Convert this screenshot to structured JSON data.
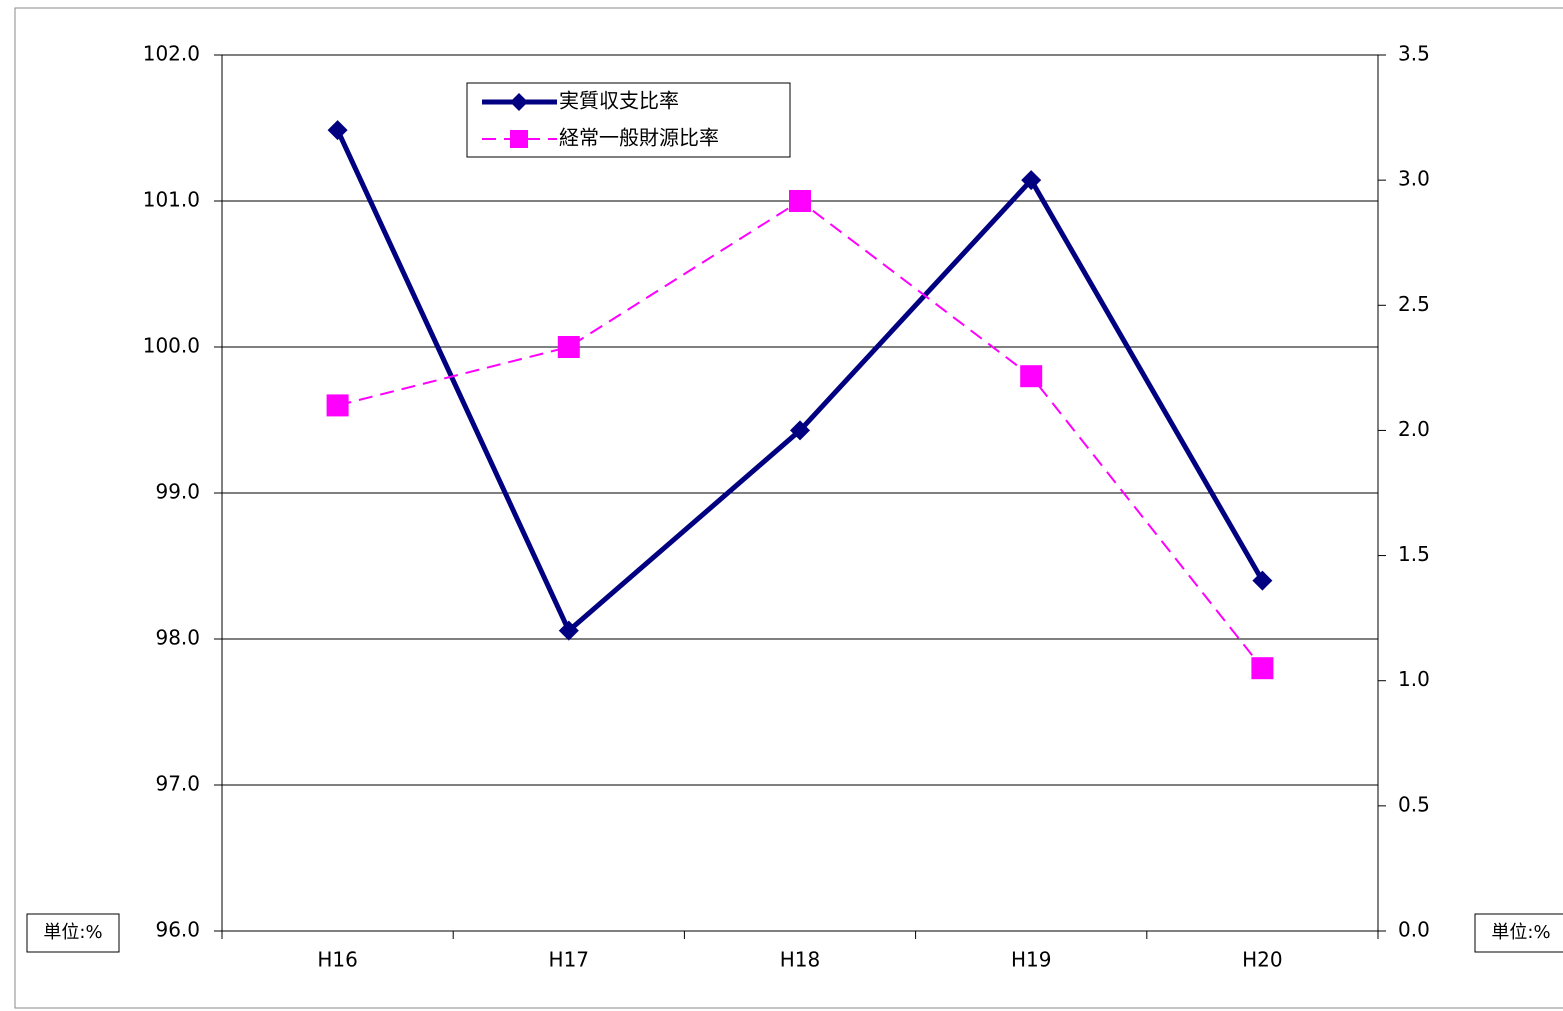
{
  "chart_data": {
    "type": "line",
    "categories": [
      "H16",
      "H17",
      "H18",
      "H19",
      "H20"
    ],
    "series": [
      {
        "name": "実質収支比率",
        "color": "#000080",
        "marker": "diamond",
        "dash": false,
        "axis": "y2",
        "values": [
          3.2,
          1.2,
          2.0,
          3.0,
          1.4
        ]
      },
      {
        "name": "経常一般財源比率",
        "color": "#ff00ff",
        "marker": "square",
        "dash": true,
        "values": [
          99.6,
          100.0,
          101.0,
          99.8,
          97.8
        ]
      }
    ],
    "ylim": [
      96,
      102
    ],
    "yticks": [
      {
        "value": 96,
        "label": "96.0"
      },
      {
        "value": 97,
        "label": "97.0"
      },
      {
        "value": 98,
        "label": "98.0"
      },
      {
        "value": 99,
        "label": "99.0"
      },
      {
        "value": 100,
        "label": "100.0"
      },
      {
        "value": 101,
        "label": "101.0"
      },
      {
        "value": 102,
        "label": "102.0"
      }
    ],
    "y2lim": [
      0,
      3.5
    ],
    "y2ticks": [
      {
        "value": 0,
        "label": "0.0"
      },
      0.5,
      {
        "value": 1,
        "label": "1.0"
      },
      1.5,
      {
        "value": 2,
        "label": "2.0"
      },
      2.5,
      {
        "value": 3,
        "label": "3.0"
      },
      3.5
    ],
    "grid": true,
    "legend": "top-left",
    "annotations": [
      "単位:%",
      "単位:%"
    ]
  }
}
